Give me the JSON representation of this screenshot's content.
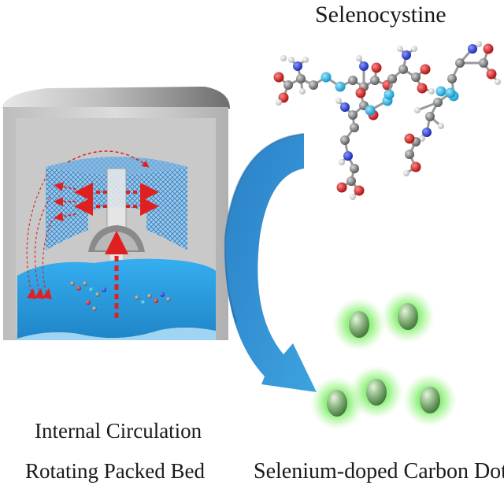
{
  "molecule": {
    "title": "Selenocystine"
  },
  "reactor": {
    "label_line1": "Internal Circulation",
    "label_line2": "Rotating Packed Bed"
  },
  "product": {
    "label": "Selenium-doped Carbon Dots"
  },
  "colors": {
    "reactor_wall": "#c9c9c9",
    "reactor_liquid": "#2b9fe0",
    "packing": "#3a8fd0",
    "flow_arrow": "#e02020",
    "process_arrow": "#2a7cc4",
    "carbon_dot": "#6a9a60",
    "carbon_dot_glow": "#7be36a",
    "atom_carbon": "#7a7a7a",
    "atom_hydrogen": "#e8e8e8",
    "atom_oxygen": "#d42020",
    "atom_nitrogen": "#2a3cc8",
    "atom_selenium": "#2fb8e6"
  }
}
